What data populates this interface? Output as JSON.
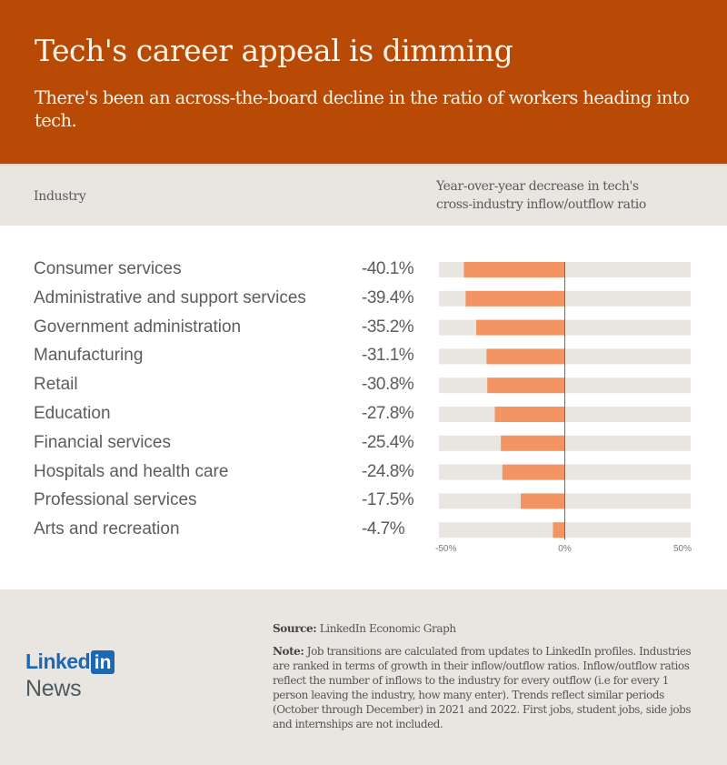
{
  "header": {
    "title": "Tech's career appeal is dimming",
    "subtitle": "There's been an across-the-board decline in the ratio of workers heading into tech."
  },
  "column_headers": {
    "industry": "Industry",
    "metric": [
      "Year-over-year decrease in tech's",
      "cross-industry inflow/outflow ratio"
    ]
  },
  "colors": {
    "header_bg": "#b94a05",
    "bar": "#f39563",
    "track": "#e9e6e1",
    "linkedin_blue": "#1c68b5"
  },
  "chart_data": {
    "type": "bar",
    "orientation": "horizontal",
    "title": "Year-over-year decrease in tech's cross-industry inflow/outflow ratio",
    "xlabel": "",
    "ylabel": "Industry",
    "xlim": [
      -50,
      50
    ],
    "x_ticks": [
      "-50%",
      "0%",
      "50%"
    ],
    "categories": [
      "Consumer services",
      "Administrative and support services",
      "Government administration",
      "Manufacturing",
      "Retail",
      "Education",
      "Financial services",
      "Hospitals and health care",
      "Professional services",
      "Arts and recreation"
    ],
    "values": [
      -40.1,
      -39.4,
      -35.2,
      -31.1,
      -30.8,
      -27.8,
      -25.4,
      -24.8,
      -17.5,
      -4.7
    ],
    "value_labels": [
      "-40.1%",
      "-39.4%",
      "-35.2%",
      "-31.1%",
      "-30.8%",
      "-27.8%",
      "-25.4%",
      "-24.8%",
      "-17.5%",
      "-4.7%"
    ],
    "unit": "%",
    "grid": false,
    "legend": "none"
  },
  "footer": {
    "source_label": "Source:",
    "source_text": " LinkedIn Economic Graph",
    "note_label": "Note:",
    "note_text": " Job transitions are calculated from updates to LinkedIn profiles. Industries are ranked in terms of growth in their inflow/outflow ratios. Inflow/outflow ratios reflect the number of inflows to the industry for every outflow (i.e for every 1 person leaving the industry, how many enter). Trends reflect similar periods (October through December) in 2021 and 2022. First jobs, student jobs, side jobs and internships are not included.",
    "logo_linked": "Linked",
    "logo_in": "in",
    "logo_news": "News"
  }
}
